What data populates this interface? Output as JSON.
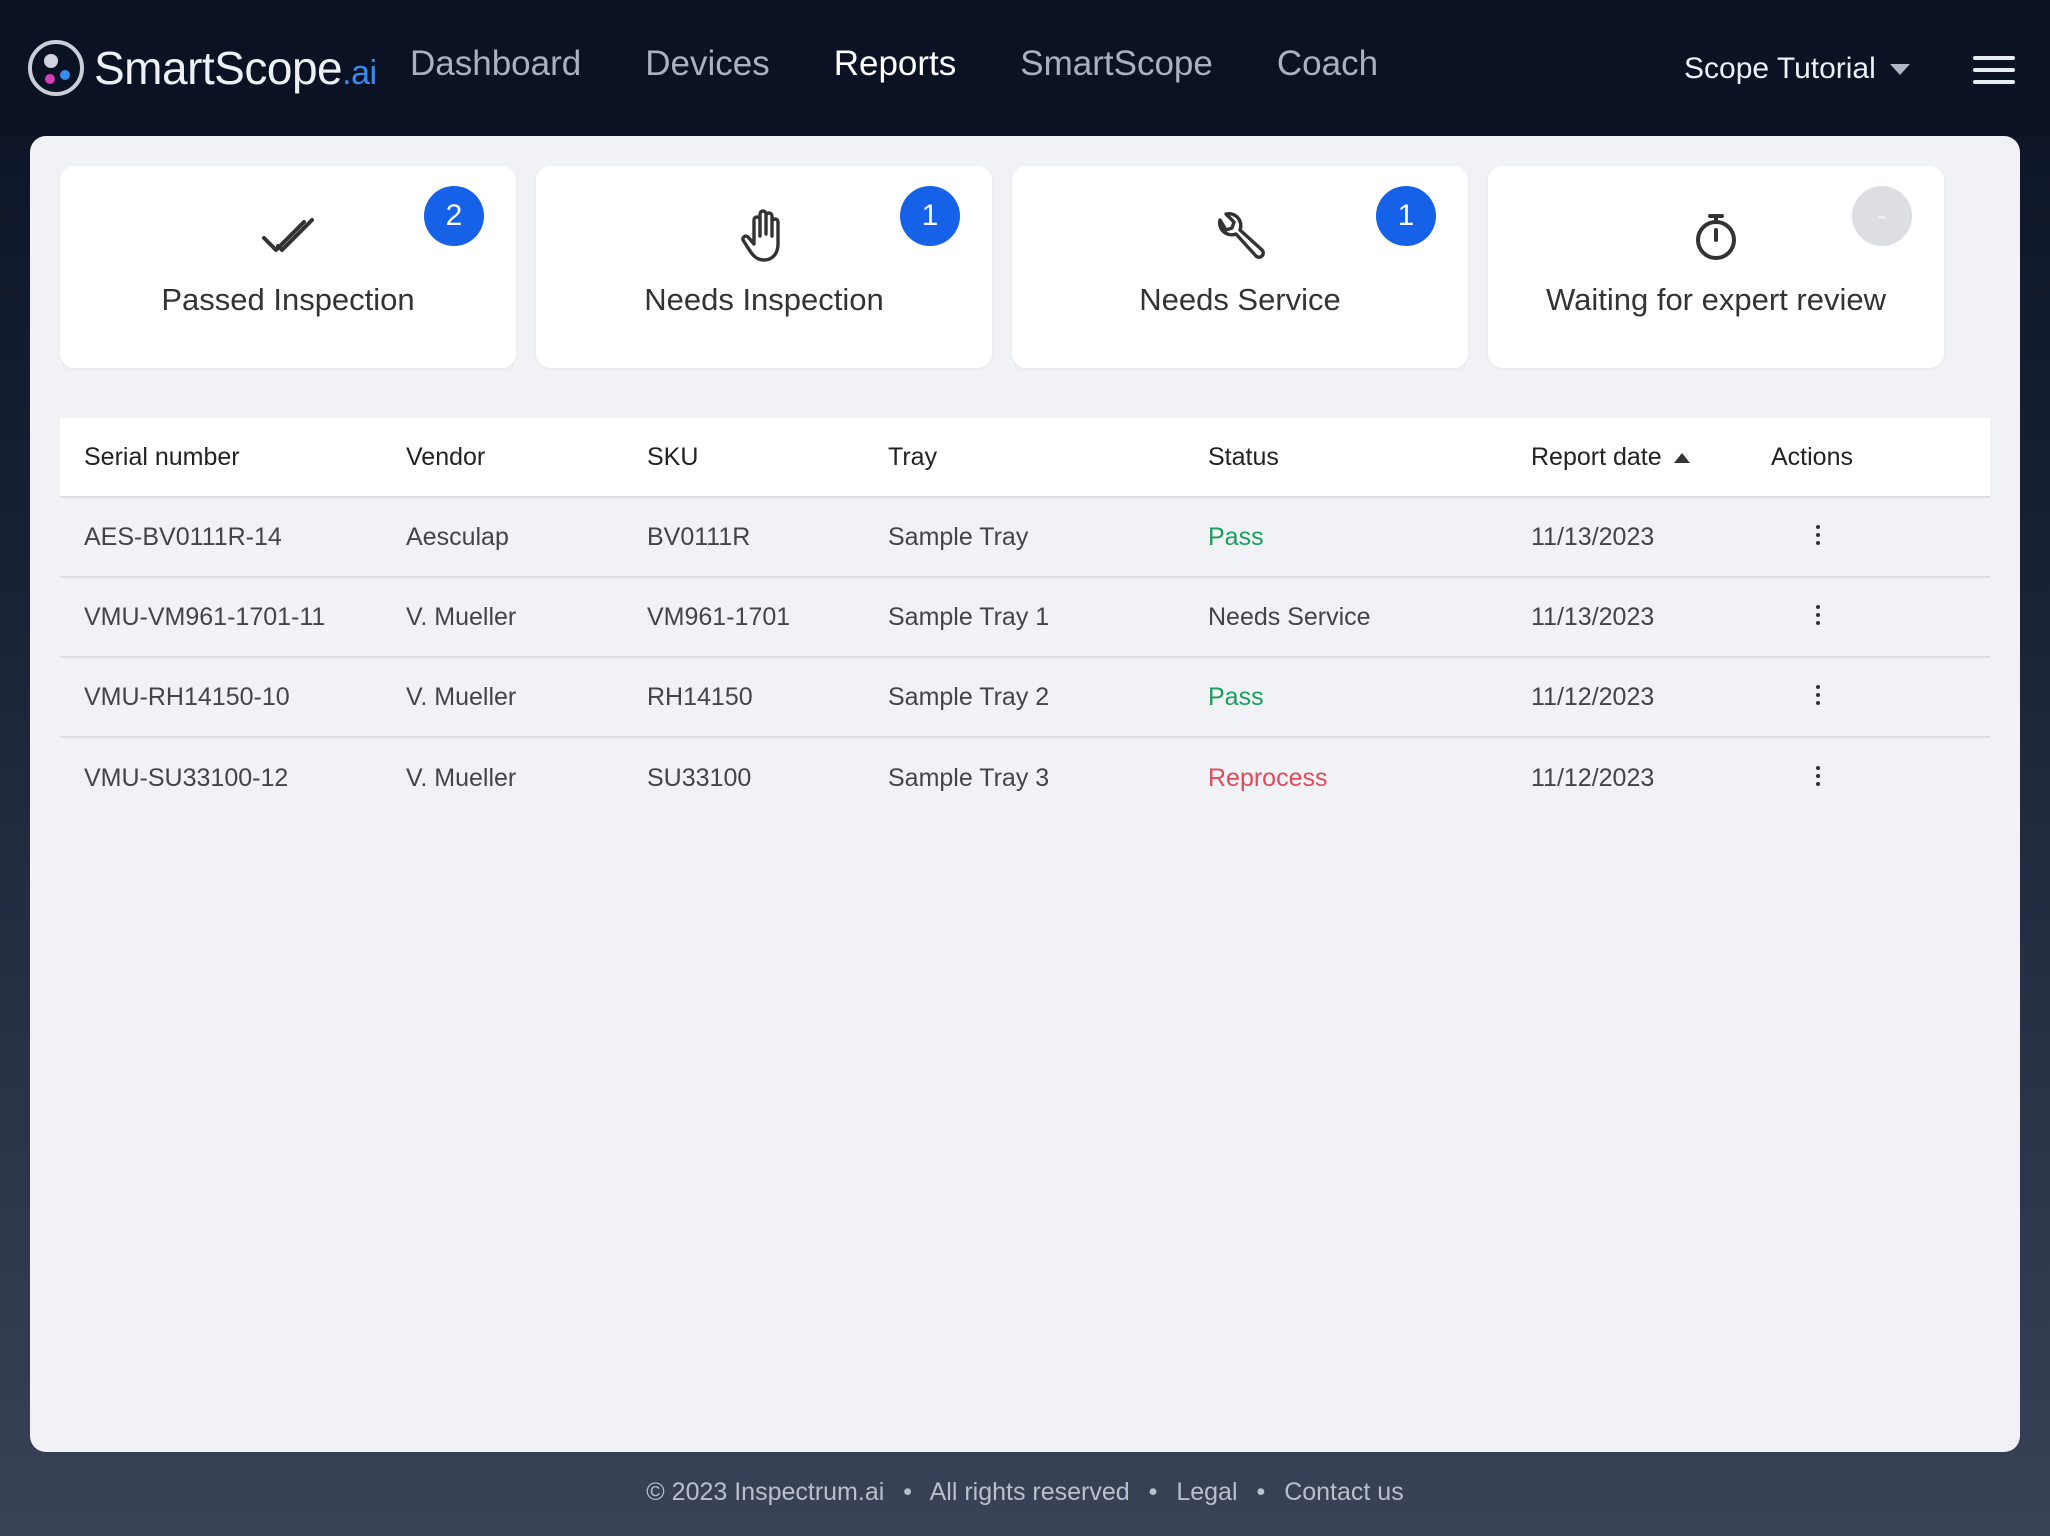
{
  "header": {
    "logo_text": "SmartScope",
    "logo_suffix": ".ai",
    "nav": [
      {
        "label": "Dashboard",
        "active": false
      },
      {
        "label": "Devices",
        "active": false
      },
      {
        "label": "Reports",
        "active": true
      },
      {
        "label": "SmartScope",
        "active": false
      },
      {
        "label": "Coach",
        "active": false
      }
    ],
    "account_label": "Scope Tutorial"
  },
  "cards": [
    {
      "label": "Passed Inspection",
      "badge": "2",
      "icon": "double-check-icon"
    },
    {
      "label": "Needs Inspection",
      "badge": "1",
      "icon": "hand-icon"
    },
    {
      "label": "Needs Service",
      "badge": "1",
      "icon": "wrench-icon"
    },
    {
      "label": "Waiting for expert review",
      "badge": "-",
      "icon": "stopwatch-icon"
    }
  ],
  "table": {
    "columns": [
      "Serial number",
      "Vendor",
      "SKU",
      "Tray",
      "Status",
      "Report date",
      "Actions"
    ],
    "rows": [
      {
        "serial": "AES-BV0111R-14",
        "vendor": "Aesculap",
        "sku": "BV0111R",
        "tray": "Sample Tray",
        "status": "Pass",
        "date": "11/13/2023"
      },
      {
        "serial": "VMU-VM961-1701-11",
        "vendor": "V. Mueller",
        "sku": "VM961-1701",
        "tray": "Sample Tray 1",
        "status": "Needs Service",
        "date": "11/13/2023"
      },
      {
        "serial": "VMU-RH14150-10",
        "vendor": "V. Mueller",
        "sku": "RH14150",
        "tray": "Sample Tray 2",
        "status": "Pass",
        "date": "11/12/2023"
      },
      {
        "serial": "VMU-SU33100-12",
        "vendor": "V. Mueller",
        "sku": "SU33100",
        "tray": "Sample Tray 3",
        "status": "Reprocess",
        "date": "11/12/2023"
      }
    ]
  },
  "colors": {
    "pass": "#1a9e5c",
    "reprocess": "#e04a5a",
    "badge": "#1562e8",
    "header_bg": "#0a1224"
  },
  "footer": {
    "copyright": "© 2023 Inspectrum.ai",
    "rights": "All rights reserved",
    "legal": "Legal",
    "contact": "Contact us"
  }
}
